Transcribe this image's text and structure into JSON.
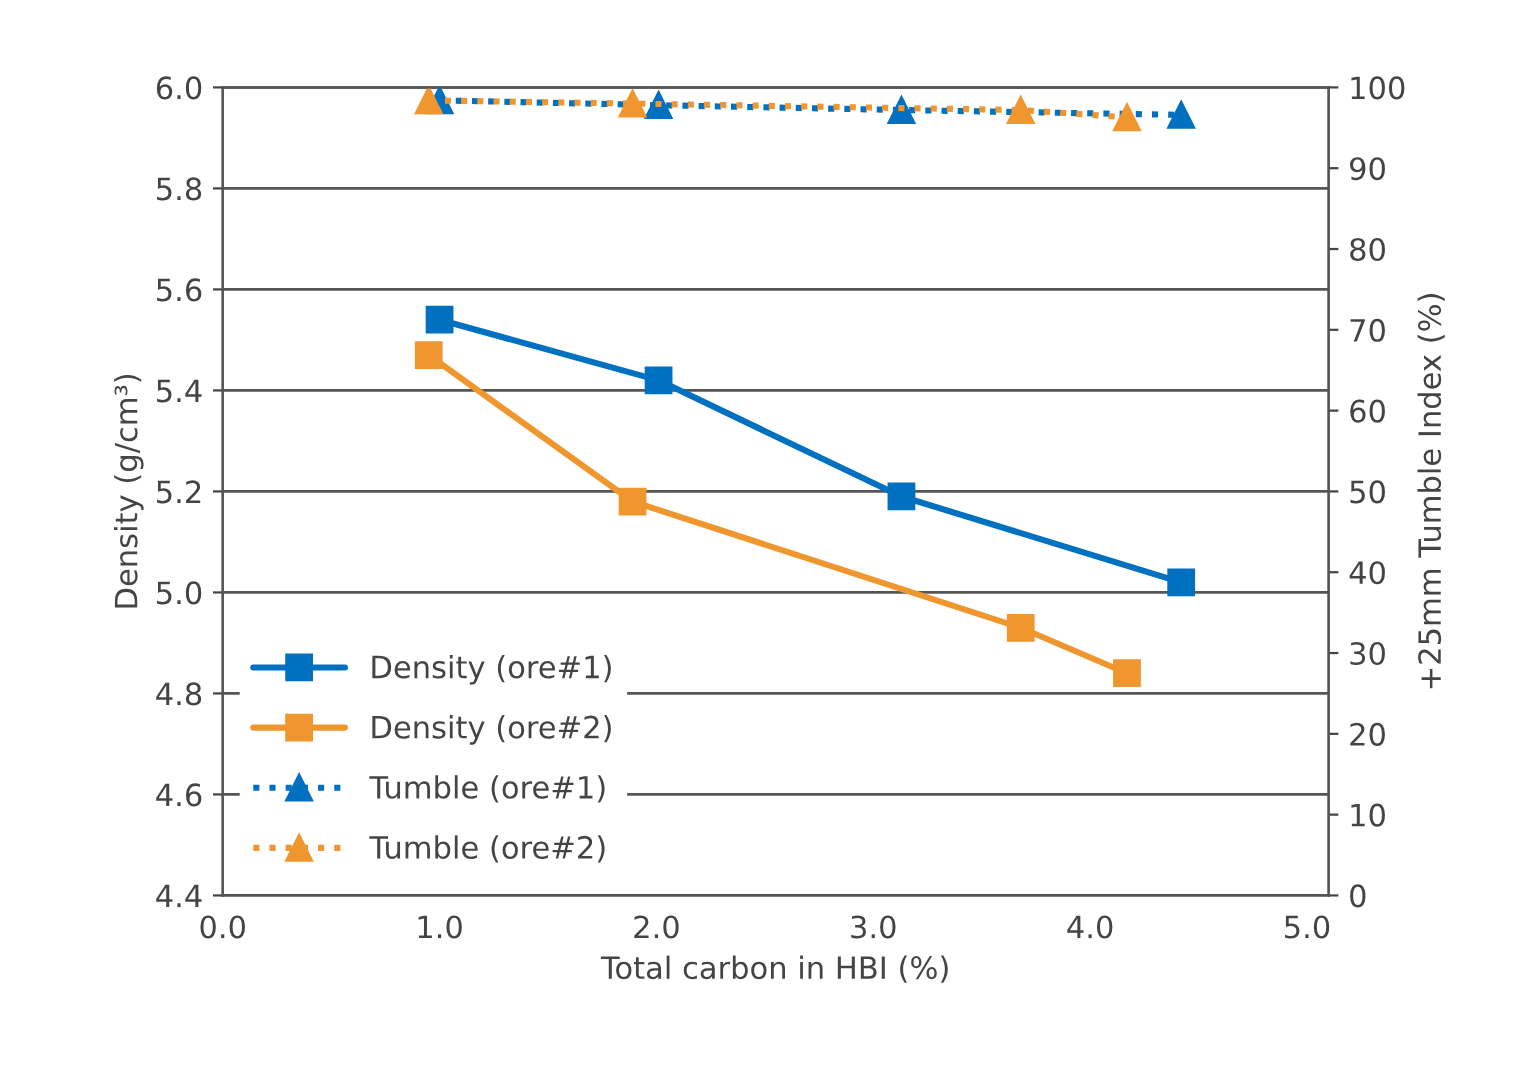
{
  "chart_data": {
    "type": "line",
    "xlabel": "Total carbon in HBI (%)",
    "ylabel": "Density (g/cm³)",
    "y2label": "+25mm Tumble Index (%)",
    "xlim": [
      0,
      5.1
    ],
    "xticks": [
      {
        "value": 0,
        "label": "0.0"
      },
      {
        "value": 1,
        "label": "1.0"
      },
      {
        "value": 2,
        "label": "2.0"
      },
      {
        "value": 3,
        "label": "3.0"
      },
      {
        "value": 4,
        "label": "4.0"
      },
      {
        "value": 5,
        "label": "5.0"
      }
    ],
    "ylim": [
      4.4,
      6.0
    ],
    "yticks": [
      {
        "value": 4.4,
        "label": "4.4"
      },
      {
        "value": 4.6,
        "label": "4.6"
      },
      {
        "value": 4.8,
        "label": "4.8"
      },
      {
        "value": 5.0,
        "label": "5.0"
      },
      {
        "value": 5.2,
        "label": "5.2"
      },
      {
        "value": 5.4,
        "label": "5.4"
      },
      {
        "value": 5.6,
        "label": "5.6"
      },
      {
        "value": 5.8,
        "label": "5.8"
      },
      {
        "value": 6.0,
        "label": "6.0"
      }
    ],
    "y2lim": [
      0,
      100
    ],
    "y2ticks": [
      0,
      10,
      20,
      30,
      40,
      50,
      60,
      70,
      80,
      90,
      100
    ],
    "grid": "y",
    "legend": "bottom left",
    "series": [
      {
        "name": "Density (ore#1)",
        "color": "#0070c0",
        "x": [
          1.0,
          2.01,
          3.13,
          4.42
        ],
        "values": [
          5.54,
          5.42,
          5.19,
          5.02
        ],
        "marker": "square",
        "line_style": "solid"
      },
      {
        "name": "Density (ore#2)",
        "color": "#f0962e",
        "x": [
          0.95,
          1.89,
          3.68,
          4.17
        ],
        "values": [
          5.47,
          5.18,
          4.93,
          4.84
        ],
        "marker": "square",
        "line_style": "solid"
      },
      {
        "name": "Tumble (ore#1)",
        "color": "#0070c0",
        "x": [
          1.0,
          2.01,
          3.13,
          4.42
        ],
        "values": [
          98.4,
          97.8,
          97.2,
          96.6
        ],
        "axis": "y2",
        "marker": "triangle",
        "line_style": "dotted"
      },
      {
        "name": "Tumble (ore#2)",
        "color": "#f0962e",
        "x": [
          0.95,
          1.89,
          3.68,
          4.17
        ],
        "values": [
          98.4,
          98.0,
          97.2,
          96.3
        ],
        "axis": "y2",
        "marker": "triangle",
        "line_style": "dotted"
      }
    ]
  }
}
